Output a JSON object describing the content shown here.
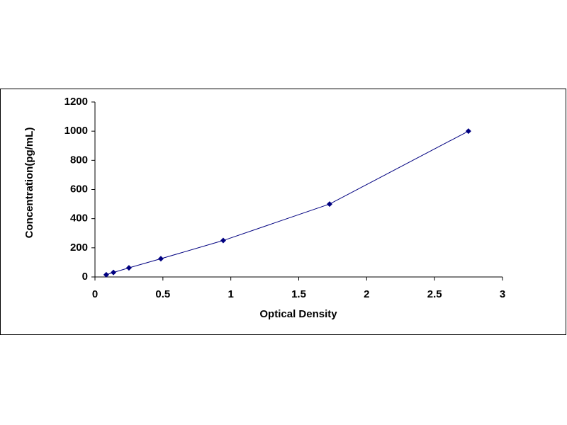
{
  "chart_data": {
    "type": "scatter",
    "x_label": "Optical Density",
    "y_label": "Concentration(pg/mL)",
    "series": [
      {
        "color": "#000080",
        "x": [
          0.083,
          0.136,
          0.25,
          0.485,
          0.944,
          1.727,
          2.749
        ],
        "values": [
          15,
          31,
          62.5,
          125,
          250,
          500,
          1000
        ]
      }
    ],
    "xlim": [
      0,
      3
    ],
    "xticks": [
      0,
      0.5,
      1,
      1.5,
      2,
      2.5,
      3
    ],
    "ylim": [
      0,
      1200
    ],
    "yticks": [
      0,
      200,
      400,
      600,
      800,
      1000,
      1200
    ],
    "trend_line": true,
    "grid": false
  }
}
